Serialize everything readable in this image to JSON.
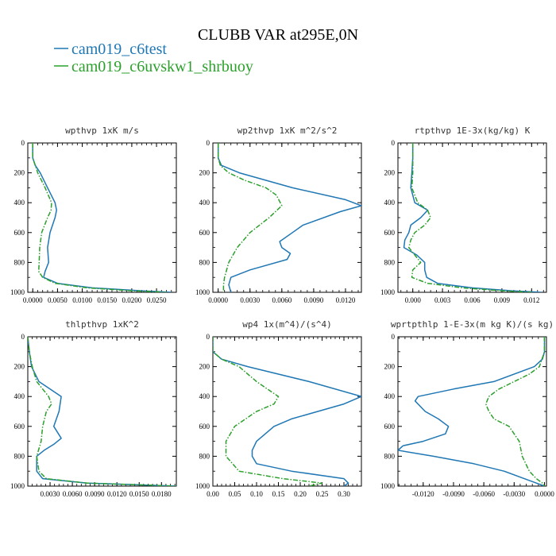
{
  "figure": {
    "title": "CLUBB VAR at295E,0N",
    "legend": [
      {
        "label": "cam019_c6test",
        "color": "#1f77b4",
        "dash": "solid"
      },
      {
        "label": "cam019_c6uvskw1_shrbuoy",
        "color": "#2ca02c",
        "dash": "dashdot"
      }
    ]
  },
  "chart_data": [
    {
      "type": "line",
      "title": "wpthvp  1xK m/s",
      "xlim": [
        -0.001,
        0.029
      ],
      "ylim": [
        1000,
        0
      ],
      "x_ticks": [
        0.0,
        0.005,
        0.01,
        0.015,
        0.02,
        0.025
      ],
      "x_tick_labels": [
        "0.0000",
        "0.0050",
        "0.0100",
        "0.0150",
        "0.0200",
        "0.0250"
      ],
      "y_ticks": [
        0,
        200,
        400,
        600,
        800,
        1000
      ],
      "y_tick_labels": [
        "0",
        "200",
        "400",
        "600",
        "800",
        "1000"
      ],
      "series": [
        {
          "name": "cam019_c6test",
          "y": [
            0,
            100,
            150,
            200,
            300,
            400,
            450,
            500,
            600,
            700,
            800,
            860,
            900,
            940,
            970,
            990,
            1000
          ],
          "x": [
            0.0,
            0.0,
            0.0005,
            0.0015,
            0.003,
            0.0045,
            0.0048,
            0.0045,
            0.0035,
            0.003,
            0.0032,
            0.0025,
            0.0022,
            0.005,
            0.012,
            0.022,
            0.028
          ]
        },
        {
          "name": "cam019_c6uvskw1_shrbuoy",
          "y": [
            0,
            100,
            150,
            200,
            300,
            400,
            450,
            500,
            600,
            700,
            800,
            860,
            900,
            940,
            970,
            990,
            1000
          ],
          "x": [
            0.0,
            0.0,
            0.0005,
            0.001,
            0.0025,
            0.0038,
            0.0037,
            0.003,
            0.0018,
            0.0014,
            0.0013,
            0.0012,
            0.002,
            0.0045,
            0.011,
            0.02,
            0.027
          ]
        }
      ]
    },
    {
      "type": "line",
      "title": "wp2thvp  1xK m^2/s^2",
      "xlim": [
        -0.0005,
        0.0135
      ],
      "ylim": [
        1000,
        0
      ],
      "x_ticks": [
        0.0,
        0.003,
        0.006,
        0.009,
        0.012
      ],
      "x_tick_labels": [
        "0.0000",
        "0.0030",
        "0.0060",
        "0.0090",
        "0.0120"
      ],
      "y_ticks": [
        0,
        200,
        400,
        600,
        800,
        1000
      ],
      "y_tick_labels": [
        "0",
        "200",
        "400",
        "600",
        "800",
        "1000"
      ],
      "series": [
        {
          "name": "cam019_c6test",
          "y": [
            0,
            100,
            150,
            200,
            300,
            380,
            420,
            460,
            550,
            600,
            660,
            700,
            740,
            780,
            850,
            900,
            950,
            1000
          ],
          "x": [
            0.0,
            0.0,
            0.0003,
            0.002,
            0.007,
            0.012,
            0.0135,
            0.0115,
            0.008,
            0.007,
            0.0058,
            0.006,
            0.0068,
            0.0065,
            0.003,
            0.0012,
            0.001,
            0.0012
          ]
        },
        {
          "name": "cam019_c6uvskw1_shrbuoy",
          "y": [
            0,
            100,
            150,
            200,
            250,
            300,
            350,
            420,
            500,
            600,
            700,
            800,
            900,
            950,
            1000
          ],
          "x": [
            0.0,
            0.0,
            0.0002,
            0.001,
            0.0025,
            0.0045,
            0.0055,
            0.006,
            0.0048,
            0.003,
            0.0018,
            0.001,
            0.0006,
            0.0005,
            0.0005
          ]
        }
      ]
    },
    {
      "type": "line",
      "title": "rtpthvp  1E-3x(kg/kg) K",
      "xlim": [
        -0.0015,
        0.0135
      ],
      "ylim": [
        1000,
        0
      ],
      "x_ticks": [
        0.0,
        0.003,
        0.006,
        0.009,
        0.012
      ],
      "x_tick_labels": [
        "0.000",
        "0.003",
        "0.006",
        "0.009",
        "0.012"
      ],
      "y_ticks": [
        0,
        200,
        400,
        600,
        800,
        1000
      ],
      "y_tick_labels": [
        "0",
        "200",
        "400",
        "600",
        "800",
        "1000"
      ],
      "series": [
        {
          "name": "cam019_c6test",
          "y": [
            0,
            100,
            200,
            300,
            400,
            450,
            500,
            550,
            600,
            650,
            700,
            750,
            800,
            850,
            900,
            940,
            970,
            990,
            1000
          ],
          "x": [
            0.0,
            0.0,
            -0.0001,
            -0.0002,
            0.0002,
            0.0015,
            0.0008,
            -0.0002,
            -0.0004,
            -0.0008,
            -0.0009,
            0.0004,
            0.0012,
            0.0012,
            0.0014,
            0.0025,
            0.006,
            0.01,
            0.013
          ]
        },
        {
          "name": "cam019_c6uvskw1_shrbuoy",
          "y": [
            0,
            100,
            200,
            300,
            400,
            450,
            500,
            550,
            600,
            650,
            700,
            750,
            800,
            850,
            900,
            940,
            970,
            990,
            1000
          ],
          "x": [
            0.0,
            0.0,
            0.0,
            -0.0001,
            0.0005,
            0.0015,
            0.0018,
            0.0012,
            0.0002,
            -0.0002,
            -0.0004,
            0.0002,
            0.0008,
            0.0,
            -0.0001,
            0.0015,
            0.005,
            0.009,
            0.012
          ]
        }
      ]
    },
    {
      "type": "line",
      "title": "thlpthvp  1xK^2",
      "xlim": [
        0.0,
        0.02
      ],
      "ylim": [
        1000,
        0
      ],
      "x_ticks": [
        0.003,
        0.006,
        0.009,
        0.012,
        0.015,
        0.018
      ],
      "x_tick_labels": [
        "0.0030",
        "0.0060",
        "0.0090",
        "0.0120",
        "0.0150",
        "0.0180"
      ],
      "y_ticks": [
        0,
        200,
        400,
        600,
        800,
        1000
      ],
      "y_tick_labels": [
        "0",
        "200",
        "400",
        "600",
        "800",
        "1000"
      ],
      "series": [
        {
          "name": "cam019_c6test",
          "y": [
            0,
            100,
            200,
            300,
            350,
            400,
            500,
            600,
            680,
            720,
            760,
            800,
            900,
            950,
            980,
            1000
          ],
          "x": [
            0.0,
            0.0002,
            0.0005,
            0.0015,
            0.003,
            0.0045,
            0.0042,
            0.0035,
            0.0045,
            0.0035,
            0.0022,
            0.0012,
            0.0012,
            0.002,
            0.008,
            0.02
          ]
        },
        {
          "name": "cam019_c6uvskw1_shrbuoy",
          "y": [
            0,
            100,
            200,
            300,
            400,
            450,
            500,
            600,
            700,
            800,
            900,
            950,
            980,
            1000
          ],
          "x": [
            0.0,
            0.0002,
            0.0006,
            0.0012,
            0.0028,
            0.0032,
            0.0025,
            0.002,
            0.0018,
            0.0012,
            0.0015,
            0.0025,
            0.008,
            0.02
          ]
        }
      ]
    },
    {
      "type": "line",
      "title": "wp4  1x(m^4)/(s^4)",
      "xlim": [
        0.0,
        0.34
      ],
      "ylim": [
        1000,
        0
      ],
      "x_ticks": [
        0.0,
        0.05,
        0.1,
        0.15,
        0.2,
        0.25,
        0.3
      ],
      "x_tick_labels": [
        "0.00",
        "0.05",
        "0.10",
        "0.15",
        "0.20",
        "0.25",
        "0.30"
      ],
      "y_ticks": [
        0,
        200,
        400,
        600,
        800,
        1000
      ],
      "y_tick_labels": [
        "0",
        "200",
        "400",
        "600",
        "800",
        "1000"
      ],
      "series": [
        {
          "name": "cam019_c6test",
          "y": [
            0,
            100,
            150,
            200,
            300,
            400,
            450,
            550,
            600,
            700,
            760,
            800,
            850,
            900,
            950,
            980,
            1000
          ],
          "x": [
            0.0,
            0.0,
            0.02,
            0.08,
            0.22,
            0.34,
            0.3,
            0.18,
            0.14,
            0.1,
            0.09,
            0.09,
            0.1,
            0.18,
            0.3,
            0.31,
            0.3
          ]
        },
        {
          "name": "cam019_c6uvskw1_shrbuoy",
          "y": [
            0,
            100,
            150,
            200,
            300,
            400,
            450,
            500,
            600,
            700,
            800,
            900,
            950,
            980,
            1000
          ],
          "x": [
            0.0,
            0.0,
            0.02,
            0.06,
            0.1,
            0.15,
            0.14,
            0.1,
            0.05,
            0.03,
            0.03,
            0.06,
            0.16,
            0.25,
            0.22
          ]
        }
      ]
    },
    {
      "type": "line",
      "title": "wprtpthlp  1-E-3x(m kg K)/(s kg)",
      "xlim": [
        -0.0145,
        0.0002
      ],
      "ylim": [
        1000,
        0
      ],
      "x_ticks": [
        -0.012,
        -0.009,
        -0.006,
        -0.003,
        0.0
      ],
      "x_tick_labels": [
        "-0.0120",
        "-0.0090",
        "-0.0060",
        "-0.0030",
        "0.0000"
      ],
      "y_ticks": [
        0,
        200,
        400,
        600,
        800,
        1000
      ],
      "y_tick_labels": [
        "0",
        "200",
        "400",
        "600",
        "800",
        "1000"
      ],
      "series": [
        {
          "name": "cam019_c6test",
          "y": [
            0,
            100,
            150,
            200,
            300,
            350,
            400,
            430,
            500,
            550,
            600,
            650,
            700,
            730,
            760,
            800,
            850,
            900,
            950,
            980,
            1000
          ],
          "x": [
            0.0,
            0.0,
            -0.0002,
            -0.001,
            -0.005,
            -0.009,
            -0.0125,
            -0.0128,
            -0.0118,
            -0.0105,
            -0.0095,
            -0.0098,
            -0.012,
            -0.014,
            -0.0145,
            -0.011,
            -0.007,
            -0.004,
            -0.002,
            -0.0008,
            0.0
          ]
        },
        {
          "name": "cam019_c6uvskw1_shrbuoy",
          "y": [
            0,
            100,
            200,
            250,
            300,
            350,
            400,
            450,
            500,
            550,
            600,
            700,
            800,
            900,
            950,
            980,
            1000
          ],
          "x": [
            0.0,
            0.0,
            -0.0005,
            -0.0015,
            -0.003,
            -0.0045,
            -0.0055,
            -0.0058,
            -0.0055,
            -0.005,
            -0.0035,
            -0.0025,
            -0.0022,
            -0.0015,
            -0.0008,
            -0.0002,
            0.0
          ]
        }
      ]
    }
  ]
}
